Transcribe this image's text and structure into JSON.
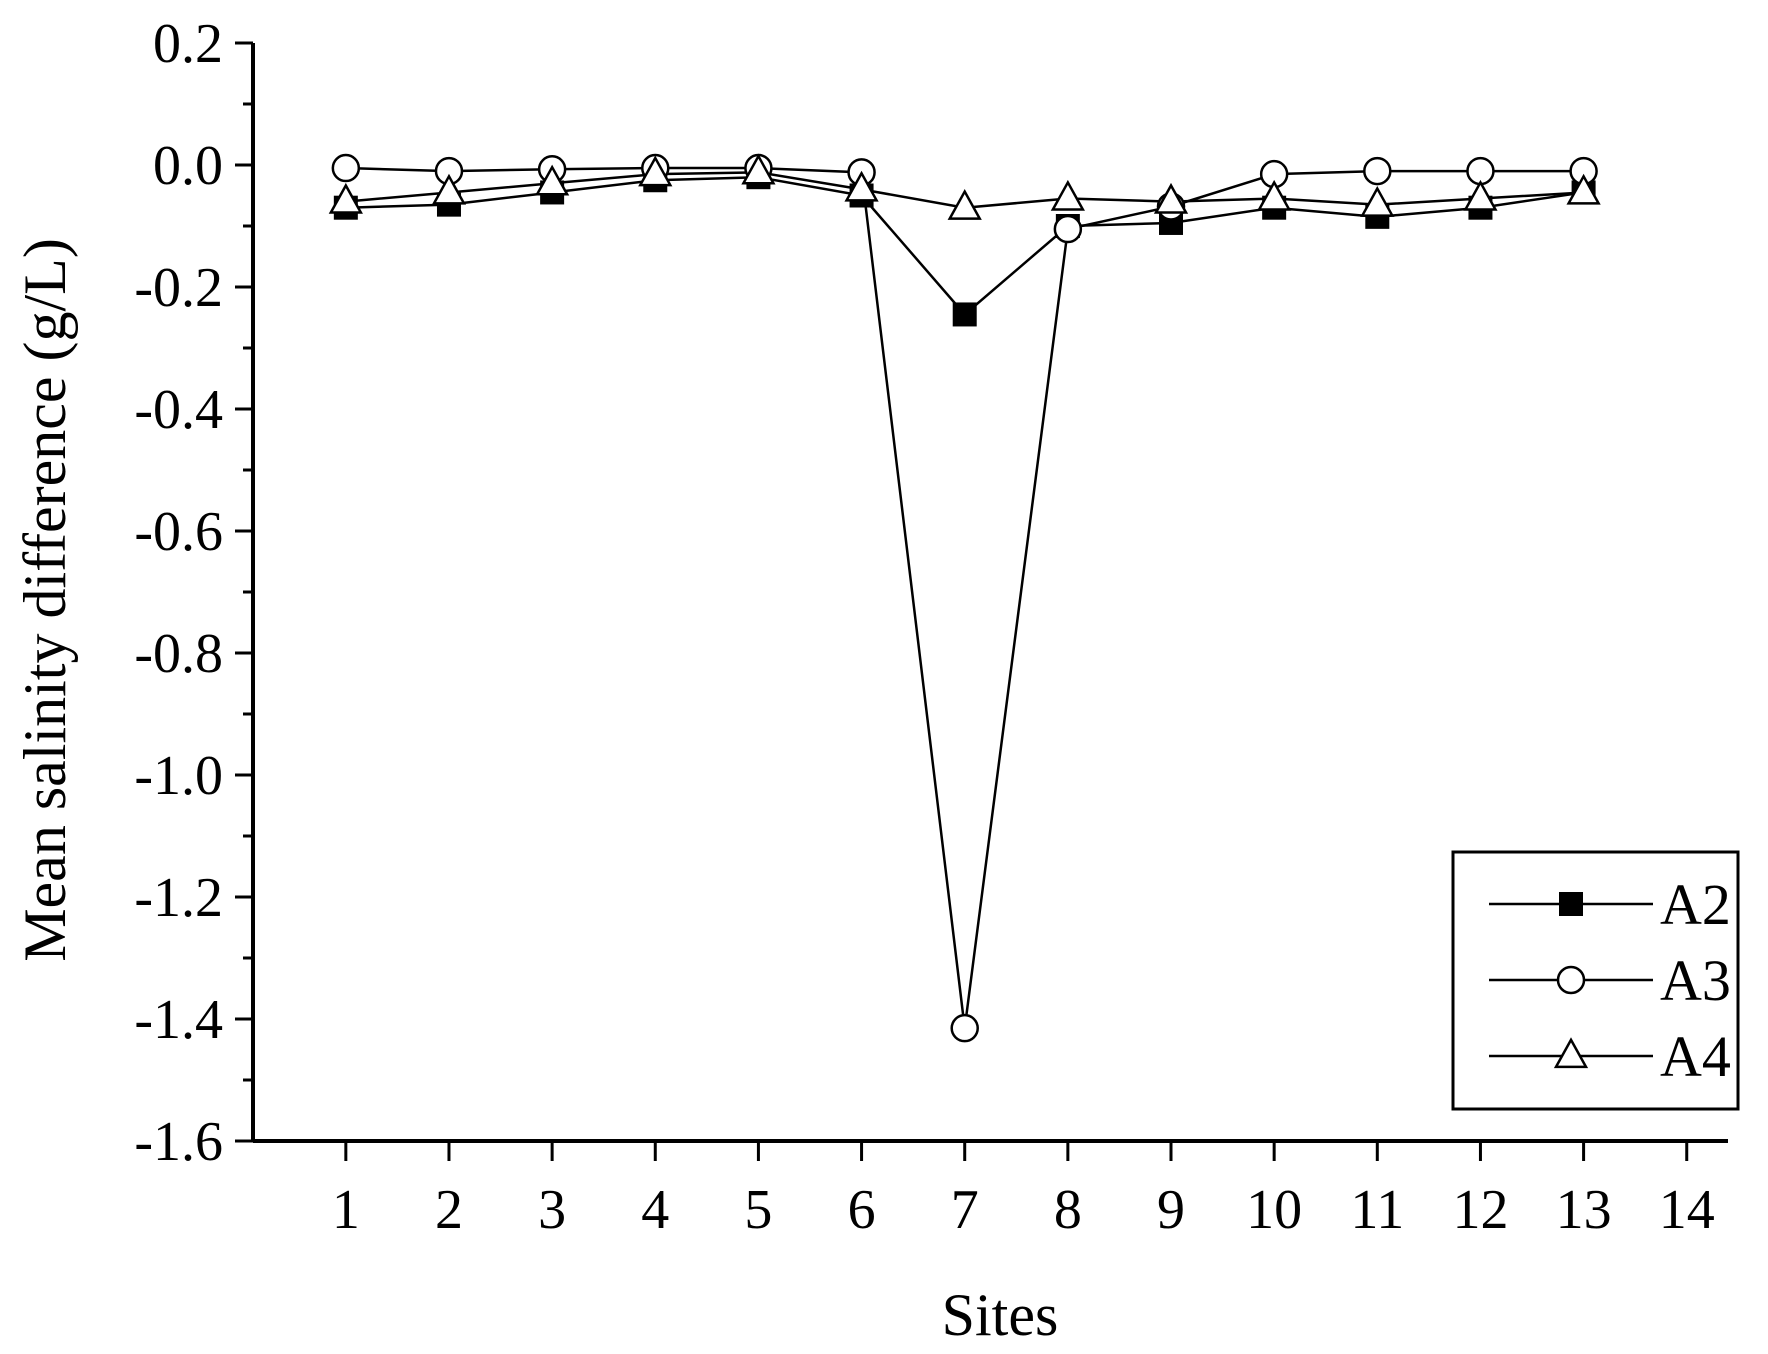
{
  "chart_data": {
    "type": "line",
    "title": "",
    "xlabel": "Sites",
    "ylabel": "Mean salinity difference (g/L)",
    "x_ticks": [
      "1",
      "2",
      "3",
      "4",
      "5",
      "6",
      "7",
      "8",
      "9",
      "10",
      "11",
      "12",
      "13",
      "14"
    ],
    "xlim": [
      0.1,
      14.4
    ],
    "ylim": [
      -1.6,
      0.2
    ],
    "y_ticks": [
      "0.2",
      "0.0",
      "-0.2",
      "-0.4",
      "-0.6",
      "-0.8",
      "-1.0",
      "-1.2",
      "-1.4",
      "-1.6"
    ],
    "y_tick_values": [
      0.2,
      0.0,
      -0.2,
      -0.4,
      -0.6,
      -0.8,
      -1.0,
      -1.2,
      -1.4,
      -1.6
    ],
    "grid": false,
    "legend_position": "bottom-right",
    "x": [
      1,
      2,
      3,
      4,
      5,
      6,
      7,
      8,
      9,
      10,
      11,
      12,
      13
    ],
    "series": [
      {
        "name": "A2",
        "marker": "filled-square",
        "values": [
          -0.07,
          -0.065,
          -0.045,
          -0.025,
          -0.02,
          -0.05,
          -0.245,
          -0.1,
          -0.095,
          -0.07,
          -0.085,
          -0.07,
          -0.045
        ]
      },
      {
        "name": "A3",
        "marker": "open-circle",
        "values": [
          -0.005,
          -0.01,
          -0.007,
          -0.005,
          -0.005,
          -0.012,
          -1.415,
          -0.105,
          -0.068,
          -0.015,
          -0.01,
          -0.01,
          -0.01
        ]
      },
      {
        "name": "A4",
        "marker": "open-triangle",
        "values": [
          -0.06,
          -0.045,
          -0.03,
          -0.015,
          -0.012,
          -0.04,
          -0.07,
          -0.055,
          -0.06,
          -0.055,
          -0.065,
          -0.055,
          -0.045
        ]
      }
    ],
    "colors": {
      "line": "#000000",
      "background": "#ffffff"
    }
  }
}
